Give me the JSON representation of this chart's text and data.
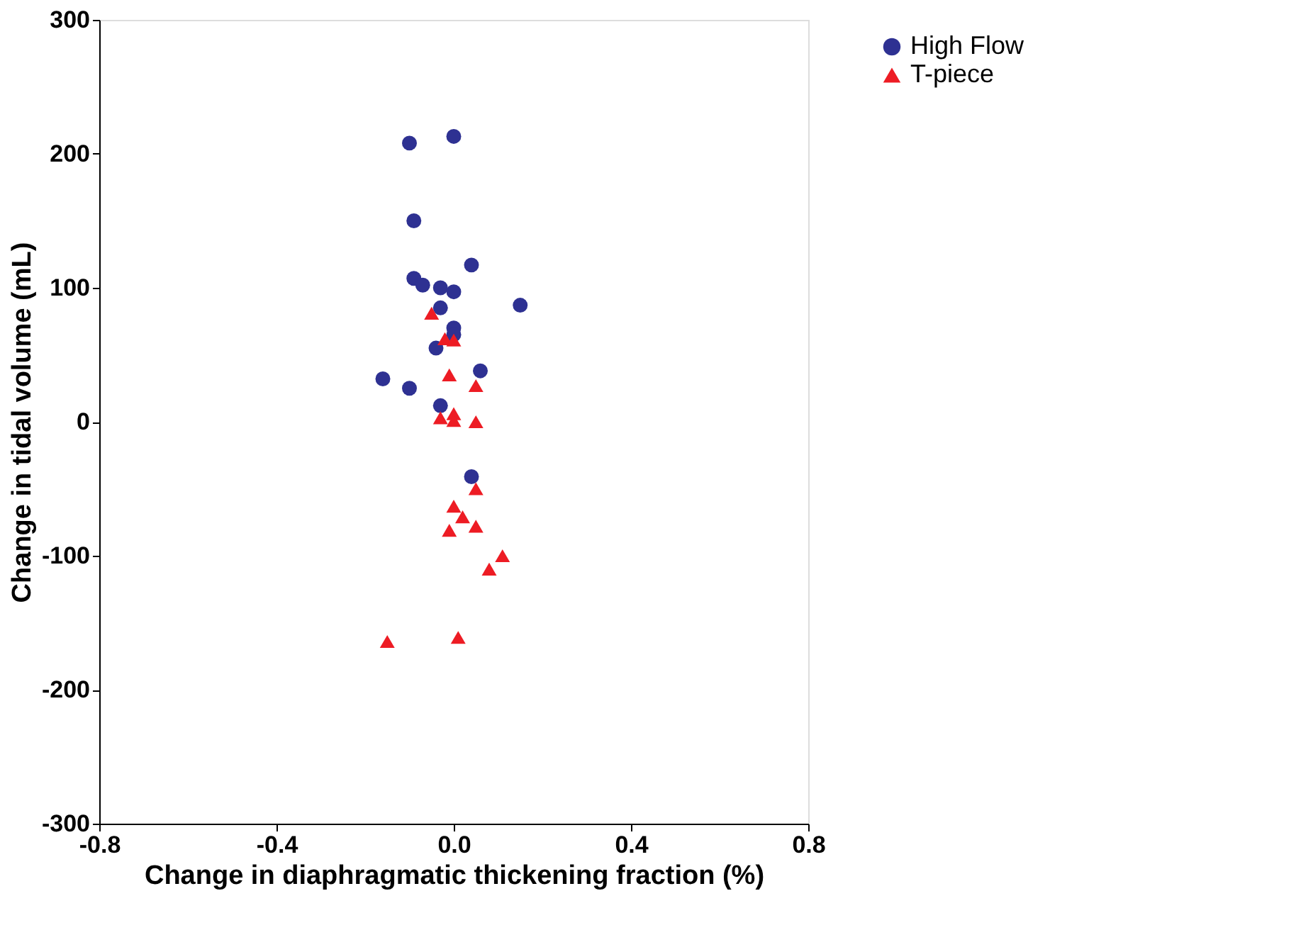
{
  "chart_data": {
    "type": "scatter",
    "xlabel": "Change in diaphragmatic thickening fraction (%)",
    "ylabel": "Change in tidal volume (mL)",
    "xlim": [
      -0.8,
      0.8
    ],
    "xticks": [
      {
        "value": -0.8,
        "label": "-0.8"
      },
      {
        "value": -0.4,
        "label": "-0.4"
      },
      {
        "value": 0,
        "label": "0.0"
      },
      {
        "value": 0.4,
        "label": "0.4"
      },
      {
        "value": 0.8,
        "label": "0.8"
      }
    ],
    "ylim": [
      -300,
      300
    ],
    "yticks": [
      {
        "value": -300,
        "label": "-300"
      },
      {
        "value": -200,
        "label": "-200"
      },
      {
        "value": -100,
        "label": "-100"
      },
      0,
      100,
      200,
      300
    ],
    "grid": false,
    "legend": "right",
    "series": [
      {
        "name": "High Flow",
        "color": "#2e3192",
        "marker": "circle",
        "x": [
          -0.1,
          0.0,
          -0.09,
          -0.09,
          -0.07,
          0.04,
          -0.03,
          0.0,
          0.15,
          -0.03,
          0.0,
          0.0,
          -0.04,
          0.06,
          -0.16,
          -0.1,
          -0.03,
          0.04
        ],
        "values": [
          208,
          213,
          150,
          107,
          102,
          117,
          100,
          97,
          87,
          85,
          70,
          65,
          55,
          38,
          32,
          25,
          12,
          -41
        ]
      },
      {
        "name": "T-piece",
        "color": "#ed1c24",
        "marker": "triangle",
        "x": [
          -0.05,
          -0.02,
          0.0,
          -0.01,
          0.05,
          -0.03,
          0.0,
          0.0,
          0.05,
          0.05,
          0.0,
          0.02,
          -0.01,
          0.05,
          0.11,
          0.08,
          -0.15,
          0.01
        ],
        "values": [
          81,
          62,
          61,
          35,
          27,
          3,
          6,
          1,
          0,
          -50,
          -63,
          -71,
          -81,
          -78,
          -100,
          -110,
          -164,
          -161
        ]
      }
    ]
  }
}
